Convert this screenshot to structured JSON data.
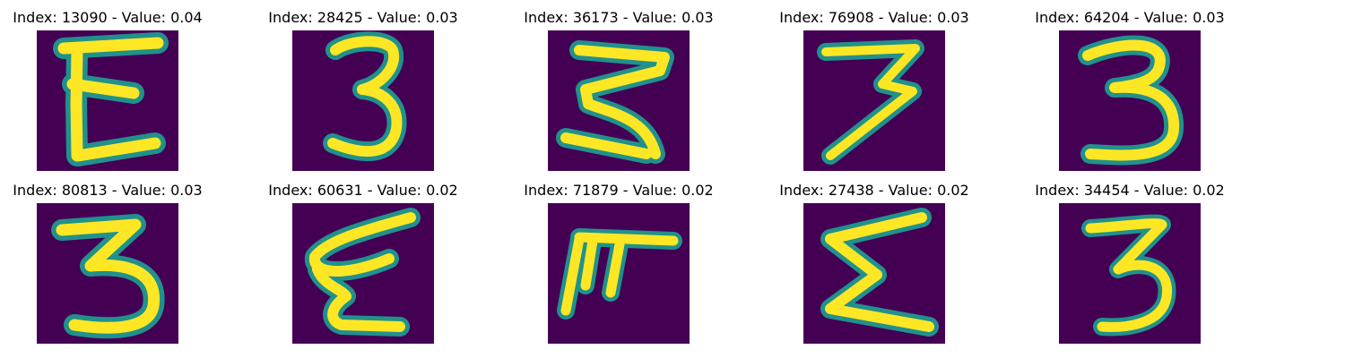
{
  "figure": {
    "background": "#ffffff",
    "colormap": {
      "low": "#440154",
      "mid": "#21918c",
      "high": "#fde725"
    }
  },
  "panels": [
    {
      "index": "13090",
      "value": "0.04",
      "title": "Index: 13090 - Value: 0.04",
      "glyph": "E-like"
    },
    {
      "index": "28425",
      "value": "0.03",
      "title": "Index: 28425 - Value: 0.03",
      "glyph": "3"
    },
    {
      "index": "36173",
      "value": "0.03",
      "title": "Index: 36173 - Value: 0.03",
      "glyph": "3"
    },
    {
      "index": "76908",
      "value": "0.03",
      "title": "Index: 76908 - Value: 0.03",
      "glyph": "7-like"
    },
    {
      "index": "64204",
      "value": "0.03",
      "title": "Index: 64204 - Value: 0.03",
      "glyph": "3"
    },
    {
      "index": "80813",
      "value": "0.03",
      "title": "Index: 80813 - Value: 0.03",
      "glyph": "3"
    },
    {
      "index": "60631",
      "value": "0.02",
      "title": "Index: 60631 - Value: 0.02",
      "glyph": "E-like"
    },
    {
      "index": "71879",
      "value": "0.02",
      "title": "Index: 71879 - Value: 0.02",
      "glyph": "F-like"
    },
    {
      "index": "27438",
      "value": "0.02",
      "title": "Index: 27438 - Value: 0.02",
      "glyph": "E-like"
    },
    {
      "index": "34454",
      "value": "0.02",
      "title": "Index: 34454 - Value: 0.02",
      "glyph": "3"
    }
  ]
}
